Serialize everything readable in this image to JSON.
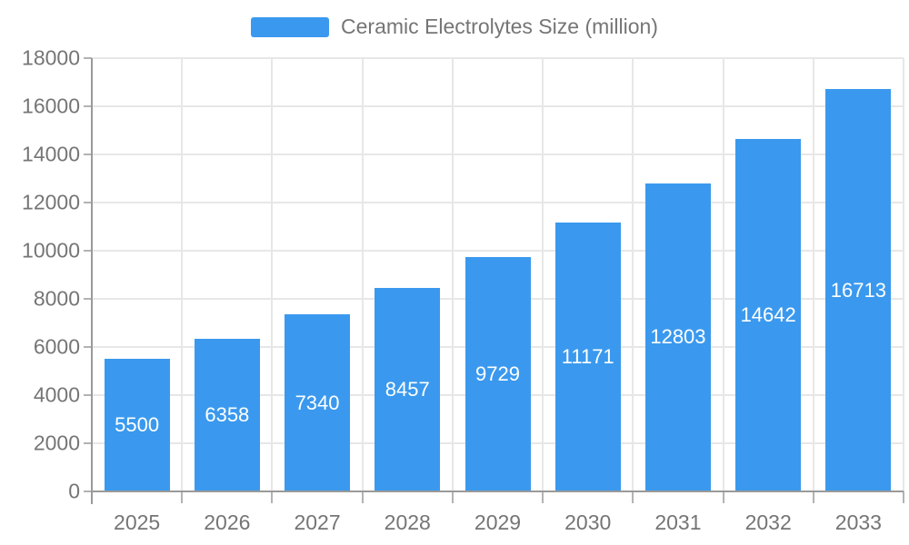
{
  "chart_data": {
    "type": "bar",
    "title": "Ceramic Electrolytes Size (million)",
    "categories": [
      "2025",
      "2026",
      "2027",
      "2028",
      "2029",
      "2030",
      "2031",
      "2032",
      "2033"
    ],
    "values": [
      5500,
      6358,
      7340,
      8457,
      9729,
      11171,
      12803,
      14642,
      16713
    ],
    "xlabel": "",
    "ylabel": "",
    "ylim": [
      0,
      18000
    ],
    "ytick_step": 2000,
    "ytick_labels": [
      "0",
      "2000",
      "4000",
      "6000",
      "8000",
      "10000",
      "12000",
      "14000",
      "16000",
      "18000"
    ],
    "grid": true,
    "legend_position": "top-center",
    "value_labels": "inside-center"
  },
  "legend": {
    "swatch_icon": "series-color-swatch"
  },
  "colors": {
    "bar": "#3a99ee",
    "grid_line": "#e7e7e7",
    "axis_line": "#9a9a9a",
    "tick": "#b3b3b3",
    "label_text": "#757575",
    "value_label_text": "#ffffff",
    "background": "#ffffff"
  }
}
